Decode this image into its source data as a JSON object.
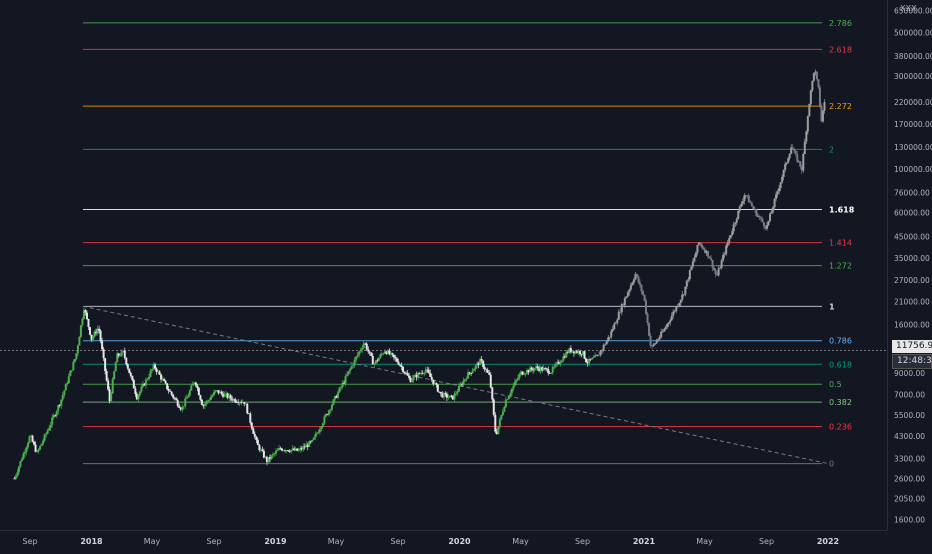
{
  "chart_data": {
    "type": "candlestick",
    "scale": "log",
    "price_axis": {
      "header": "XXX",
      "ticks": [
        650000,
        500000,
        380000,
        300000,
        220000,
        170000,
        130000,
        100000,
        76000,
        60000,
        45000,
        35000,
        27000,
        21000,
        16000,
        12000,
        9000,
        7000,
        5500,
        4300,
        3300,
        2600,
        2050,
        1600
      ],
      "tick_labels": [
        "650000.00",
        "500000.00",
        "380000.00",
        "300000.00",
        "220000.00",
        "170000.00",
        "130000.00",
        "100000.00",
        "76000.00",
        "60000.00",
        "45000.00",
        "35000.00",
        "27000.00",
        "21000.00",
        "16000.00",
        "12000.00",
        "9000.00",
        "7000.00",
        "5500.00",
        "4300.00",
        "3300.00",
        "2600.00",
        "2050.00",
        "1600.00"
      ],
      "ylim": [
        1450,
        700000
      ]
    },
    "time_axis": {
      "labels": [
        "Sep",
        "2018",
        "May",
        "Sep",
        "2019",
        "May",
        "Sep",
        "2020",
        "May",
        "Sep",
        "2021",
        "May",
        "Sep",
        "2022"
      ],
      "bold": [
        false,
        true,
        false,
        false,
        true,
        false,
        false,
        true,
        false,
        false,
        true,
        false,
        false,
        true
      ],
      "dates": [
        "2017-09-01",
        "2018-01-01",
        "2018-05-01",
        "2018-09-01",
        "2019-01-01",
        "2019-05-01",
        "2019-09-01",
        "2020-01-01",
        "2020-05-01",
        "2020-09-01",
        "2021-01-01",
        "2021-05-01",
        "2021-09-01",
        "2022-01-01"
      ]
    },
    "last_price": "11756.94",
    "countdown": "12:48:39",
    "fib_levels": [
      {
        "label": "0",
        "price": 3100,
        "color": "#787b86"
      },
      {
        "label": "0.236",
        "price": 4800,
        "color": "#f23645"
      },
      {
        "label": "0.382",
        "price": 6400,
        "color": "#81c784"
      },
      {
        "label": "0.5",
        "price": 7900,
        "color": "#4caf50"
      },
      {
        "label": "0.618",
        "price": 10000,
        "color": "#089981"
      },
      {
        "label": "0.786",
        "price": 13200,
        "color": "#64b5f6"
      },
      {
        "label": "1",
        "price": 19800,
        "color": "#d1d4dc"
      },
      {
        "label": "1.272",
        "price": 32000,
        "color": "#4caf50"
      },
      {
        "label": "1.414",
        "price": 42000,
        "color": "#f23645"
      },
      {
        "label": "1.618",
        "price": 62000,
        "color": "#ffffff"
      },
      {
        "label": "2",
        "price": 126000,
        "color": "#089981"
      },
      {
        "label": "2.272",
        "price": 210000,
        "color": "#ff9800"
      },
      {
        "label": "2.618",
        "price": 410000,
        "color": "#f23645"
      },
      {
        "label": "2.786",
        "price": 560000,
        "color": "#4caf50"
      }
    ],
    "trend_line": {
      "from": {
        "date": "2017-12-15",
        "price": 19800
      },
      "to": {
        "date": "2022-01-01",
        "price": 3100
      }
    },
    "series": [
      {
        "style": "historical",
        "color": "#4caf50",
        "points": [
          [
            "2017-08-01",
            2600
          ],
          [
            "2017-09-01",
            4300
          ],
          [
            "2017-09-15",
            3500
          ],
          [
            "2017-10-01",
            4300
          ],
          [
            "2017-11-01",
            6500
          ],
          [
            "2017-12-01",
            11000
          ],
          [
            "2017-12-17",
            19500
          ],
          [
            "2018-01-01",
            13500
          ],
          [
            "2018-01-15",
            15500
          ],
          [
            "2018-02-06",
            6500
          ],
          [
            "2018-02-20",
            11000
          ],
          [
            "2018-03-05",
            11500
          ],
          [
            "2018-04-01",
            6800
          ],
          [
            "2018-05-05",
            9800
          ],
          [
            "2018-06-01",
            7500
          ],
          [
            "2018-06-29",
            5900
          ],
          [
            "2018-07-25",
            8300
          ],
          [
            "2018-08-10",
            6100
          ],
          [
            "2018-09-05",
            7300
          ],
          [
            "2018-10-10",
            6600
          ],
          [
            "2018-11-01",
            6400
          ],
          [
            "2018-11-25",
            3900
          ],
          [
            "2018-12-15",
            3200
          ],
          [
            "2019-01-10",
            3700
          ],
          [
            "2019-02-15",
            3600
          ],
          [
            "2019-03-15",
            4000
          ],
          [
            "2019-04-05",
            5100
          ],
          [
            "2019-05-15",
            8000
          ],
          [
            "2019-06-26",
            13000
          ],
          [
            "2019-07-15",
            10000
          ],
          [
            "2019-08-06",
            11800
          ],
          [
            "2019-09-01",
            10300
          ],
          [
            "2019-09-25",
            8300
          ],
          [
            "2019-10-26",
            9400
          ],
          [
            "2019-11-25",
            7000
          ],
          [
            "2019-12-18",
            6700
          ],
          [
            "2020-01-15",
            8700
          ],
          [
            "2020-02-12",
            10400
          ],
          [
            "2020-03-01",
            8600
          ],
          [
            "2020-03-13",
            4300
          ],
          [
            "2020-04-01",
            6500
          ],
          [
            "2020-05-01",
            9000
          ],
          [
            "2020-06-01",
            9600
          ],
          [
            "2020-07-01",
            9200
          ],
          [
            "2020-08-05",
            11800
          ],
          [
            "2020-09-01",
            11500
          ],
          [
            "2020-09-10",
            10200
          ],
          [
            "2020-10-01",
            11000
          ]
        ]
      },
      {
        "style": "projection",
        "color": "#787b86",
        "points": [
          [
            "2020-10-01",
            11000
          ],
          [
            "2020-10-25",
            14000
          ],
          [
            "2020-11-15",
            19000
          ],
          [
            "2020-12-15",
            29000
          ],
          [
            "2021-01-01",
            22000
          ],
          [
            "2021-01-15",
            12000
          ],
          [
            "2021-02-10",
            15000
          ],
          [
            "2021-03-20",
            23000
          ],
          [
            "2021-04-20",
            42000
          ],
          [
            "2021-05-10",
            36000
          ],
          [
            "2021-05-25",
            28000
          ],
          [
            "2021-06-20",
            45000
          ],
          [
            "2021-07-20",
            75000
          ],
          [
            "2021-08-10",
            60000
          ],
          [
            "2021-09-01",
            50000
          ],
          [
            "2021-10-01",
            90000
          ],
          [
            "2021-10-20",
            130000
          ],
          [
            "2021-11-10",
            100000
          ],
          [
            "2021-11-25",
            220000
          ],
          [
            "2021-12-05",
            330000
          ],
          [
            "2021-12-15",
            240000
          ],
          [
            "2021-12-18",
            170000
          ],
          [
            "2021-12-25",
            220000
          ]
        ]
      }
    ]
  }
}
